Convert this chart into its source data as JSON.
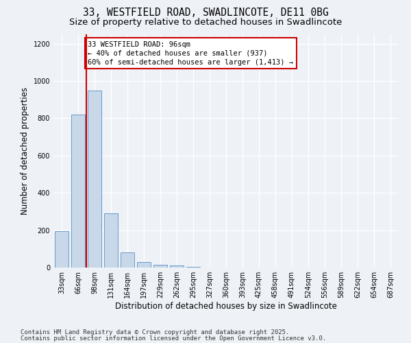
{
  "title_line1": "33, WESTFIELD ROAD, SWADLINCOTE, DE11 0BG",
  "title_line2": "Size of property relative to detached houses in Swadlincote",
  "xlabel": "Distribution of detached houses by size in Swadlincote",
  "ylabel": "Number of detached properties",
  "categories": [
    "33sqm",
    "66sqm",
    "98sqm",
    "131sqm",
    "164sqm",
    "197sqm",
    "229sqm",
    "262sqm",
    "295sqm",
    "327sqm",
    "360sqm",
    "393sqm",
    "425sqm",
    "458sqm",
    "491sqm",
    "524sqm",
    "556sqm",
    "589sqm",
    "622sqm",
    "654sqm",
    "687sqm"
  ],
  "values": [
    195,
    820,
    950,
    290,
    80,
    30,
    15,
    10,
    5,
    0,
    0,
    0,
    0,
    0,
    0,
    0,
    0,
    0,
    0,
    0,
    0
  ],
  "bar_color": "#c8d8e8",
  "bar_edge_color": "#6699cc",
  "vline_color": "#cc0000",
  "annotation_text": "33 WESTFIELD ROAD: 96sqm\n← 40% of detached houses are smaller (937)\n60% of semi-detached houses are larger (1,413) →",
  "annotation_box_edgecolor": "#cc0000",
  "ylim": [
    0,
    1250
  ],
  "yticks": [
    0,
    200,
    400,
    600,
    800,
    1000,
    1200
  ],
  "background_color": "#eef2f7",
  "grid_color": "#ffffff",
  "footer_line1": "Contains HM Land Registry data © Crown copyright and database right 2025.",
  "footer_line2": "Contains public sector information licensed under the Open Government Licence v3.0.",
  "title_fontsize": 10.5,
  "subtitle_fontsize": 9.5,
  "ylabel_fontsize": 8.5,
  "xlabel_fontsize": 8.5,
  "tick_fontsize": 7,
  "annot_fontsize": 7.5,
  "footer_fontsize": 6.5
}
